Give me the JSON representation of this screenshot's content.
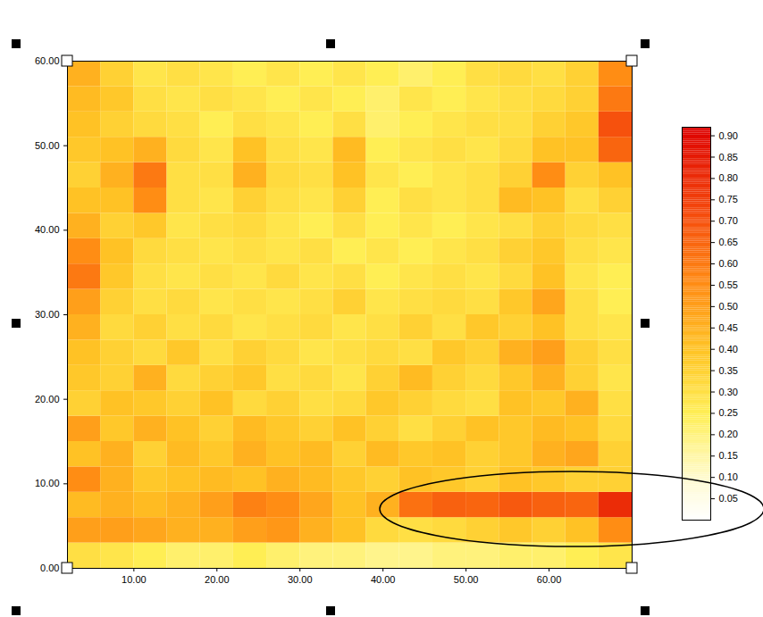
{
  "chart_data": {
    "type": "heatmap",
    "x": [
      4,
      8,
      12,
      16,
      20,
      24,
      28,
      32,
      36,
      40,
      44,
      48,
      52,
      56,
      60,
      64,
      68
    ],
    "y": [
      1.5,
      4.5,
      7.5,
      10.5,
      13.5,
      16.5,
      19.5,
      22.5,
      25.5,
      28.5,
      31.5,
      34.5,
      37.5,
      40.5,
      43.5,
      46.5,
      49.5,
      52.5,
      55.5,
      58.5
    ],
    "values": [
      [
        0.3,
        0.28,
        0.25,
        0.22,
        0.22,
        0.25,
        0.22,
        0.2,
        0.2,
        0.18,
        0.18,
        0.2,
        0.2,
        0.22,
        0.22,
        0.25,
        0.28
      ],
      [
        0.5,
        0.5,
        0.48,
        0.45,
        0.45,
        0.5,
        0.52,
        0.45,
        0.4,
        0.32,
        0.3,
        0.32,
        0.35,
        0.38,
        0.35,
        0.4,
        0.55
      ],
      [
        0.42,
        0.45,
        0.42,
        0.45,
        0.5,
        0.58,
        0.55,
        0.48,
        0.4,
        0.45,
        0.62,
        0.66,
        0.65,
        0.68,
        0.66,
        0.65,
        0.8
      ],
      [
        0.55,
        0.45,
        0.38,
        0.4,
        0.42,
        0.4,
        0.45,
        0.42,
        0.38,
        0.35,
        0.4,
        0.38,
        0.35,
        0.4,
        0.38,
        0.35,
        0.35
      ],
      [
        0.4,
        0.45,
        0.35,
        0.42,
        0.38,
        0.45,
        0.4,
        0.42,
        0.35,
        0.42,
        0.38,
        0.4,
        0.35,
        0.38,
        0.45,
        0.48,
        0.35
      ],
      [
        0.5,
        0.38,
        0.45,
        0.4,
        0.35,
        0.42,
        0.38,
        0.35,
        0.4,
        0.35,
        0.3,
        0.35,
        0.4,
        0.38,
        0.42,
        0.4,
        0.32
      ],
      [
        0.35,
        0.4,
        0.38,
        0.35,
        0.4,
        0.32,
        0.35,
        0.3,
        0.32,
        0.38,
        0.35,
        0.32,
        0.3,
        0.4,
        0.38,
        0.45,
        0.3
      ],
      [
        0.38,
        0.35,
        0.45,
        0.32,
        0.35,
        0.38,
        0.3,
        0.32,
        0.28,
        0.35,
        0.42,
        0.35,
        0.32,
        0.38,
        0.45,
        0.35,
        0.28
      ],
      [
        0.4,
        0.35,
        0.32,
        0.38,
        0.3,
        0.35,
        0.32,
        0.28,
        0.3,
        0.32,
        0.3,
        0.38,
        0.35,
        0.45,
        0.5,
        0.35,
        0.3
      ],
      [
        0.45,
        0.32,
        0.35,
        0.3,
        0.32,
        0.28,
        0.3,
        0.32,
        0.28,
        0.3,
        0.35,
        0.3,
        0.38,
        0.35,
        0.4,
        0.3,
        0.28
      ],
      [
        0.5,
        0.35,
        0.3,
        0.32,
        0.28,
        0.3,
        0.28,
        0.3,
        0.35,
        0.28,
        0.3,
        0.32,
        0.3,
        0.38,
        0.48,
        0.3,
        0.25
      ],
      [
        0.6,
        0.38,
        0.3,
        0.28,
        0.3,
        0.28,
        0.32,
        0.28,
        0.3,
        0.25,
        0.28,
        0.3,
        0.28,
        0.32,
        0.4,
        0.28,
        0.25
      ],
      [
        0.55,
        0.4,
        0.32,
        0.3,
        0.28,
        0.3,
        0.28,
        0.3,
        0.25,
        0.28,
        0.25,
        0.28,
        0.3,
        0.35,
        0.38,
        0.3,
        0.28
      ],
      [
        0.45,
        0.35,
        0.38,
        0.28,
        0.3,
        0.32,
        0.28,
        0.25,
        0.3,
        0.25,
        0.28,
        0.25,
        0.28,
        0.3,
        0.35,
        0.32,
        0.3
      ],
      [
        0.4,
        0.4,
        0.55,
        0.3,
        0.28,
        0.35,
        0.3,
        0.28,
        0.35,
        0.25,
        0.3,
        0.28,
        0.3,
        0.42,
        0.4,
        0.3,
        0.35
      ],
      [
        0.35,
        0.45,
        0.6,
        0.3,
        0.3,
        0.45,
        0.32,
        0.3,
        0.4,
        0.28,
        0.25,
        0.28,
        0.3,
        0.35,
        0.55,
        0.35,
        0.4
      ],
      [
        0.38,
        0.4,
        0.45,
        0.32,
        0.28,
        0.4,
        0.3,
        0.28,
        0.42,
        0.25,
        0.28,
        0.3,
        0.28,
        0.32,
        0.4,
        0.4,
        0.65
      ],
      [
        0.4,
        0.35,
        0.32,
        0.3,
        0.25,
        0.3,
        0.28,
        0.25,
        0.3,
        0.22,
        0.25,
        0.28,
        0.3,
        0.3,
        0.35,
        0.38,
        0.7
      ],
      [
        0.42,
        0.38,
        0.3,
        0.28,
        0.3,
        0.28,
        0.25,
        0.28,
        0.25,
        0.22,
        0.28,
        0.25,
        0.28,
        0.3,
        0.32,
        0.35,
        0.6
      ],
      [
        0.45,
        0.35,
        0.28,
        0.3,
        0.28,
        0.25,
        0.28,
        0.25,
        0.28,
        0.25,
        0.22,
        0.25,
        0.3,
        0.32,
        0.3,
        0.35,
        0.55
      ]
    ],
    "xlim": [
      2,
      70
    ],
    "xticks": [
      {
        "value": 10,
        "label": "10.00"
      },
      {
        "value": 20,
        "label": "20.00"
      },
      {
        "value": 30,
        "label": "30.00"
      },
      {
        "value": 40,
        "label": "40.00"
      },
      {
        "value": 50,
        "label": "50.00"
      },
      {
        "value": 60,
        "label": "60.00"
      }
    ],
    "ylim": [
      0,
      60
    ],
    "yticks": [
      {
        "value": 0,
        "label": "0.00"
      },
      {
        "value": 10,
        "label": "10.00"
      },
      {
        "value": 20,
        "label": "20.00"
      },
      {
        "value": 30,
        "label": "30.00"
      },
      {
        "value": 40,
        "label": "40.00"
      },
      {
        "value": 50,
        "label": "50.00"
      },
      {
        "value": 60,
        "label": "60.00"
      }
    ],
    "colorbar_lim": [
      0,
      0.92
    ],
    "colorbar_ticks": [
      0.05,
      {
        "value": 0.1,
        "label": "0.10"
      },
      0.15,
      {
        "value": 0.2,
        "label": "0.20"
      },
      0.25,
      {
        "value": 0.3,
        "label": "0.30"
      },
      0.35,
      {
        "value": 0.4,
        "label": "0.40"
      },
      0.45,
      {
        "value": 0.5,
        "label": "0.50"
      },
      0.55,
      {
        "value": 0.6,
        "label": "0.60"
      },
      0.65,
      {
        "value": 0.7,
        "label": "0.70"
      },
      0.75,
      {
        "value": 0.8,
        "label": "0.80"
      },
      0.85,
      {
        "value": 0.9,
        "label": "0.90"
      }
    ]
  }
}
